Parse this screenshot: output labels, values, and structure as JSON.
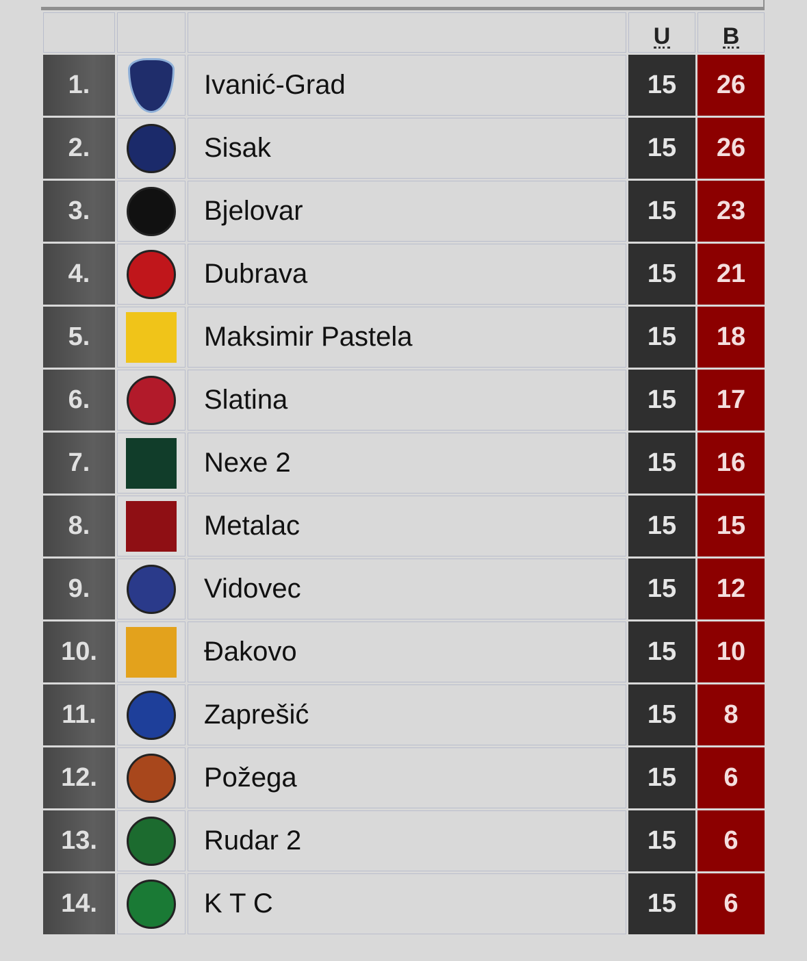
{
  "header": {
    "played_label": "U",
    "points_label": "B"
  },
  "colors": {
    "played_bg": "#2f2f2f",
    "points_bg": "#8c0000",
    "rank_bg": "#555555"
  },
  "rows": [
    {
      "rank": "1.",
      "team": "Ivanić-Grad",
      "played": "15",
      "points": "26",
      "logo": "ivanic-grad-crest",
      "logo_color": "#1f2d6b",
      "logo_shape": "shield"
    },
    {
      "rank": "2.",
      "team": "Sisak",
      "played": "15",
      "points": "26",
      "logo": "sisak-crest",
      "logo_color": "#1b2a6a",
      "logo_shape": "circle"
    },
    {
      "rank": "3.",
      "team": "Bjelovar",
      "played": "15",
      "points": "23",
      "logo": "bjelovar-crest",
      "logo_color": "#111111",
      "logo_shape": "circle"
    },
    {
      "rank": "4.",
      "team": "Dubrava",
      "played": "15",
      "points": "21",
      "logo": "dubrava-crest",
      "logo_color": "#c0161b",
      "logo_shape": "circle"
    },
    {
      "rank": "5.",
      "team": "Maksimir Pastela",
      "played": "15",
      "points": "18",
      "logo": "maksimir-pastela-crest",
      "logo_color": "#f0c419",
      "logo_shape": "square"
    },
    {
      "rank": "6.",
      "team": "Slatina",
      "played": "15",
      "points": "17",
      "logo": "slatina-crest",
      "logo_color": "#b21a2a",
      "logo_shape": "circle"
    },
    {
      "rank": "7.",
      "team": "Nexe 2",
      "played": "15",
      "points": "16",
      "logo": "nexe-crest",
      "logo_color": "#113d2a",
      "logo_shape": "square"
    },
    {
      "rank": "8.",
      "team": "Metalac",
      "played": "15",
      "points": "15",
      "logo": "metalac-crest",
      "logo_color": "#8f0f14",
      "logo_shape": "square"
    },
    {
      "rank": "9.",
      "team": "Vidovec",
      "played": "15",
      "points": "12",
      "logo": "vidovec-crest",
      "logo_color": "#2a3a8a",
      "logo_shape": "circle"
    },
    {
      "rank": "10.",
      "team": "Đakovo",
      "played": "15",
      "points": "10",
      "logo": "djakovo-crest",
      "logo_color": "#e3a21c",
      "logo_shape": "square"
    },
    {
      "rank": "11.",
      "team": "Zaprešić",
      "played": "15",
      "points": "8",
      "logo": "zapresic-crest",
      "logo_color": "#1e3f9a",
      "logo_shape": "circle"
    },
    {
      "rank": "12.",
      "team": "Požega",
      "played": "15",
      "points": "6",
      "logo": "pozega-crest",
      "logo_color": "#a8471c",
      "logo_shape": "circle"
    },
    {
      "rank": "13.",
      "team": "Rudar 2",
      "played": "15",
      "points": "6",
      "logo": "rudar-crest",
      "logo_color": "#1c6b2f",
      "logo_shape": "circle"
    },
    {
      "rank": "14.",
      "team": "K T C",
      "played": "15",
      "points": "6",
      "logo": "ktc-crest",
      "logo_color": "#1a7a35",
      "logo_shape": "circle"
    }
  ]
}
